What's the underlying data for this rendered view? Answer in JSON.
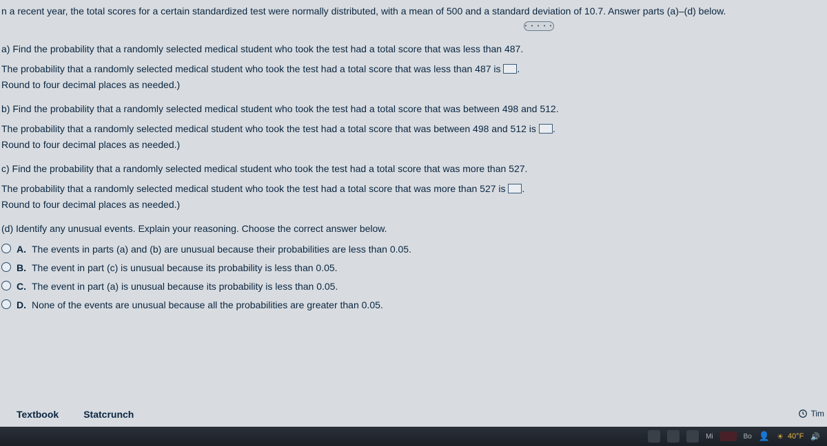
{
  "intro": "n a recent year, the total scores for a certain standardized test were normally distributed, with a mean of 500 and a standard deviation of 10.7. Answer parts (a)–(d) below.",
  "a": {
    "q": "a) Find the probability that a randomly selected medical student who took the test had a total score that was less than 487.",
    "ans_pre": "The probability that a randomly selected medical student who took the test had a total score that was less than 487 is ",
    "ans_post": ".",
    "hint": "Round to four decimal places as needed.)"
  },
  "b": {
    "q": "b) Find the probability that a randomly selected medical student who took the test had a total score that was between 498 and 512.",
    "ans_pre": "The probability that a randomly selected medical student who took the test had a total score that was between 498 and 512 is ",
    "ans_post": ".",
    "hint": "Round to four decimal places as needed.)"
  },
  "c": {
    "q": "c) Find the probability that a randomly selected medical student who took the test had a total score that was more than 527.",
    "ans_pre": "The probability that a randomly selected medical student who took the test had a total score that was more than 527 is ",
    "ans_post": ".",
    "hint": "Round to four decimal places as needed.)"
  },
  "d": {
    "q": "(d) Identify any unusual events. Explain your reasoning. Choose the correct answer below.",
    "opts": [
      {
        "letter": "A.",
        "text": "The events in parts (a) and (b) are unusual because their probabilities are less than 0.05."
      },
      {
        "letter": "B.",
        "text": "The event in part (c) is unusual because its probability is less than 0.05."
      },
      {
        "letter": "C.",
        "text": "The event in part (a) is unusual because its probability is less than 0.05."
      },
      {
        "letter": "D.",
        "text": "None of the events are unusual because all the probabilities are greater than 0.05."
      }
    ]
  },
  "links": {
    "textbook": "Textbook",
    "statcrunch": "Statcrunch"
  },
  "time_label": "Tim",
  "taskbar": {
    "temp": "40°F",
    "mi": "Mi",
    "bo": "Bo"
  },
  "dots": "• • • • •"
}
